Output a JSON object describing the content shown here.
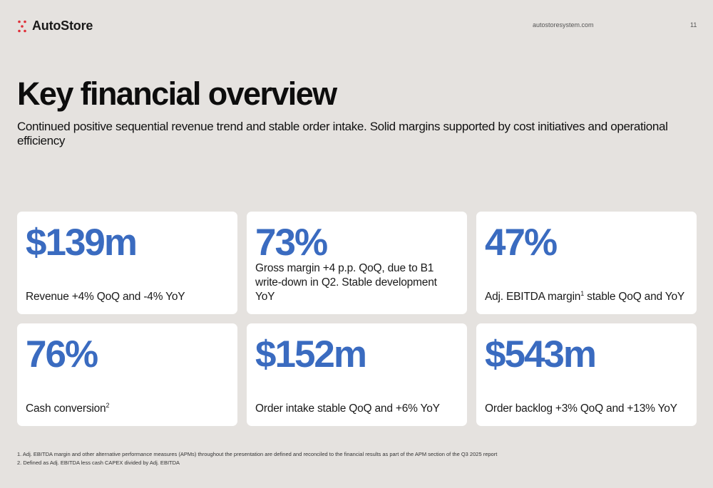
{
  "header": {
    "logo_text": "AutoStore",
    "logo_icon": "autostore-dots-icon",
    "website": "autostoresystem.com",
    "page_number": "11"
  },
  "title": "Key financial overview",
  "subtitle": "Continued positive sequential revenue trend and stable order intake. Solid margins supported by cost initiatives and operational efficiency",
  "colors": {
    "background": "#e5e2df",
    "card": "#ffffff",
    "kpi_blue": "#3a6bc0",
    "logo_red": "#e0303a"
  },
  "kpis": [
    {
      "value": "$139m",
      "text": "Revenue +4% QoQ and -4% YoY",
      "sup": "",
      "text_after": ""
    },
    {
      "value": "73%",
      "text": "Gross margin +4 p.p. QoQ, due to B1 write-down in Q2. Stable development YoY",
      "sup": "",
      "text_after": ""
    },
    {
      "value": "47%",
      "text": "Adj. EBITDA margin",
      "sup": "1",
      "text_after": " stable QoQ and YoY"
    },
    {
      "value": "76%",
      "text": "Cash conversion",
      "sup": "2",
      "text_after": ""
    },
    {
      "value": "$152m",
      "text": "Order intake stable QoQ and +6% YoY",
      "sup": "",
      "text_after": ""
    },
    {
      "value": "$543m",
      "text": "Order backlog +3% QoQ and +13% YoY",
      "sup": "",
      "text_after": ""
    }
  ],
  "footnotes": [
    "1. Adj. EBITDA margin and other alternative performance measures (APMs) throughout the presentation are defined and reconciled to the financial results as part of the APM section of the Q3 2025 report",
    "2. Defined as Adj. EBITDA less cash CAPEX divided by Adj. EBITDA"
  ]
}
